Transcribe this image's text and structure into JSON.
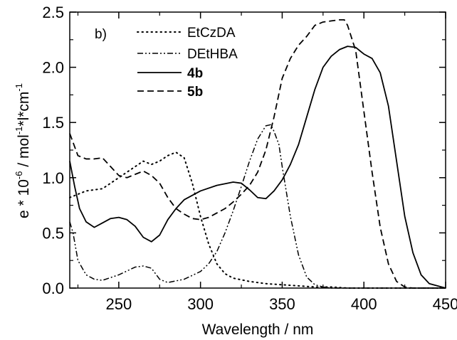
{
  "chart_data": {
    "type": "line",
    "panel_label": "b)",
    "xlabel": "Wavelength / nm",
    "ylabel_parts": [
      "e * 10",
      "-6",
      " / mol",
      "-1",
      "*l*cm",
      "-1"
    ],
    "xlim": [
      220,
      450
    ],
    "ylim": [
      0,
      2.5
    ],
    "x_ticks": [
      250,
      300,
      350,
      400,
      450
    ],
    "y_ticks": [
      0.0,
      0.5,
      1.0,
      1.5,
      2.0,
      2.5
    ],
    "x_tick_labels": [
      "250",
      "300",
      "350",
      "400",
      "450"
    ],
    "y_tick_labels": [
      "0.0",
      "0.5",
      "1.0",
      "1.5",
      "2.0",
      "2.5"
    ],
    "grid": false,
    "legend_position": "top-left",
    "series": [
      {
        "name": "EtCzDA",
        "style": "dotted",
        "bold": false,
        "x": [
          220,
          225,
          230,
          240,
          250,
          260,
          265,
          270,
          275,
          280,
          285,
          290,
          295,
          300,
          305,
          310,
          315,
          320,
          330,
          340,
          350,
          360,
          370,
          380,
          390,
          400,
          420,
          450
        ],
        "y": [
          0.82,
          0.85,
          0.88,
          0.9,
          1.0,
          1.1,
          1.15,
          1.12,
          1.15,
          1.2,
          1.23,
          1.18,
          0.95,
          0.65,
          0.4,
          0.22,
          0.13,
          0.09,
          0.06,
          0.04,
          0.03,
          0.02,
          0.01,
          0.01,
          0.0,
          0.0,
          0.0,
          0.0
        ]
      },
      {
        "name": "DEtHBA",
        "style": "dash-dot-dot",
        "bold": false,
        "x": [
          220,
          222,
          225,
          230,
          235,
          240,
          250,
          260,
          265,
          270,
          275,
          280,
          290,
          300,
          305,
          310,
          315,
          320,
          325,
          330,
          335,
          340,
          343,
          345,
          348,
          350,
          355,
          360,
          365,
          370,
          375,
          380,
          400,
          450
        ],
        "y": [
          0.6,
          0.5,
          0.25,
          0.12,
          0.08,
          0.07,
          0.12,
          0.19,
          0.2,
          0.18,
          0.08,
          0.05,
          0.08,
          0.15,
          0.22,
          0.33,
          0.5,
          0.7,
          0.92,
          1.15,
          1.35,
          1.47,
          1.48,
          1.42,
          1.3,
          1.1,
          0.65,
          0.3,
          0.1,
          0.03,
          0.01,
          0.0,
          0.0,
          0.0
        ]
      },
      {
        "name": "4b",
        "style": "solid",
        "bold": true,
        "x": [
          220,
          223,
          226,
          230,
          235,
          240,
          245,
          250,
          255,
          260,
          265,
          270,
          275,
          280,
          285,
          290,
          300,
          310,
          320,
          325,
          330,
          335,
          340,
          345,
          350,
          355,
          360,
          365,
          370,
          375,
          380,
          385,
          390,
          395,
          400,
          405,
          410,
          415,
          420,
          425,
          430,
          435,
          440,
          450
        ],
        "y": [
          1.15,
          0.92,
          0.72,
          0.6,
          0.55,
          0.59,
          0.63,
          0.64,
          0.62,
          0.56,
          0.46,
          0.42,
          0.48,
          0.62,
          0.72,
          0.8,
          0.88,
          0.93,
          0.96,
          0.95,
          0.89,
          0.82,
          0.81,
          0.88,
          0.98,
          1.12,
          1.3,
          1.55,
          1.8,
          2.0,
          2.1,
          2.16,
          2.19,
          2.18,
          2.12,
          2.08,
          1.95,
          1.65,
          1.15,
          0.65,
          0.32,
          0.12,
          0.04,
          0.0
        ]
      },
      {
        "name": "5b",
        "style": "dashed",
        "bold": true,
        "x": [
          220,
          225,
          230,
          235,
          240,
          245,
          250,
          255,
          260,
          265,
          270,
          275,
          280,
          285,
          290,
          295,
          300,
          305,
          310,
          315,
          320,
          325,
          330,
          335,
          340,
          345,
          350,
          355,
          360,
          365,
          370,
          375,
          380,
          385,
          388,
          390,
          395,
          400,
          405,
          410,
          415,
          420,
          425,
          430,
          440,
          450
        ],
        "y": [
          1.4,
          1.2,
          1.17,
          1.17,
          1.18,
          1.1,
          1.02,
          1.0,
          1.03,
          1.06,
          1.02,
          0.95,
          0.82,
          0.72,
          0.67,
          0.63,
          0.62,
          0.64,
          0.68,
          0.72,
          0.78,
          0.85,
          0.93,
          1.05,
          1.25,
          1.55,
          1.9,
          2.08,
          2.2,
          2.28,
          2.38,
          2.41,
          2.42,
          2.43,
          2.43,
          2.38,
          2.15,
          1.6,
          1.05,
          0.55,
          0.22,
          0.06,
          0.01,
          0.0,
          0.0,
          0.0
        ]
      }
    ]
  }
}
